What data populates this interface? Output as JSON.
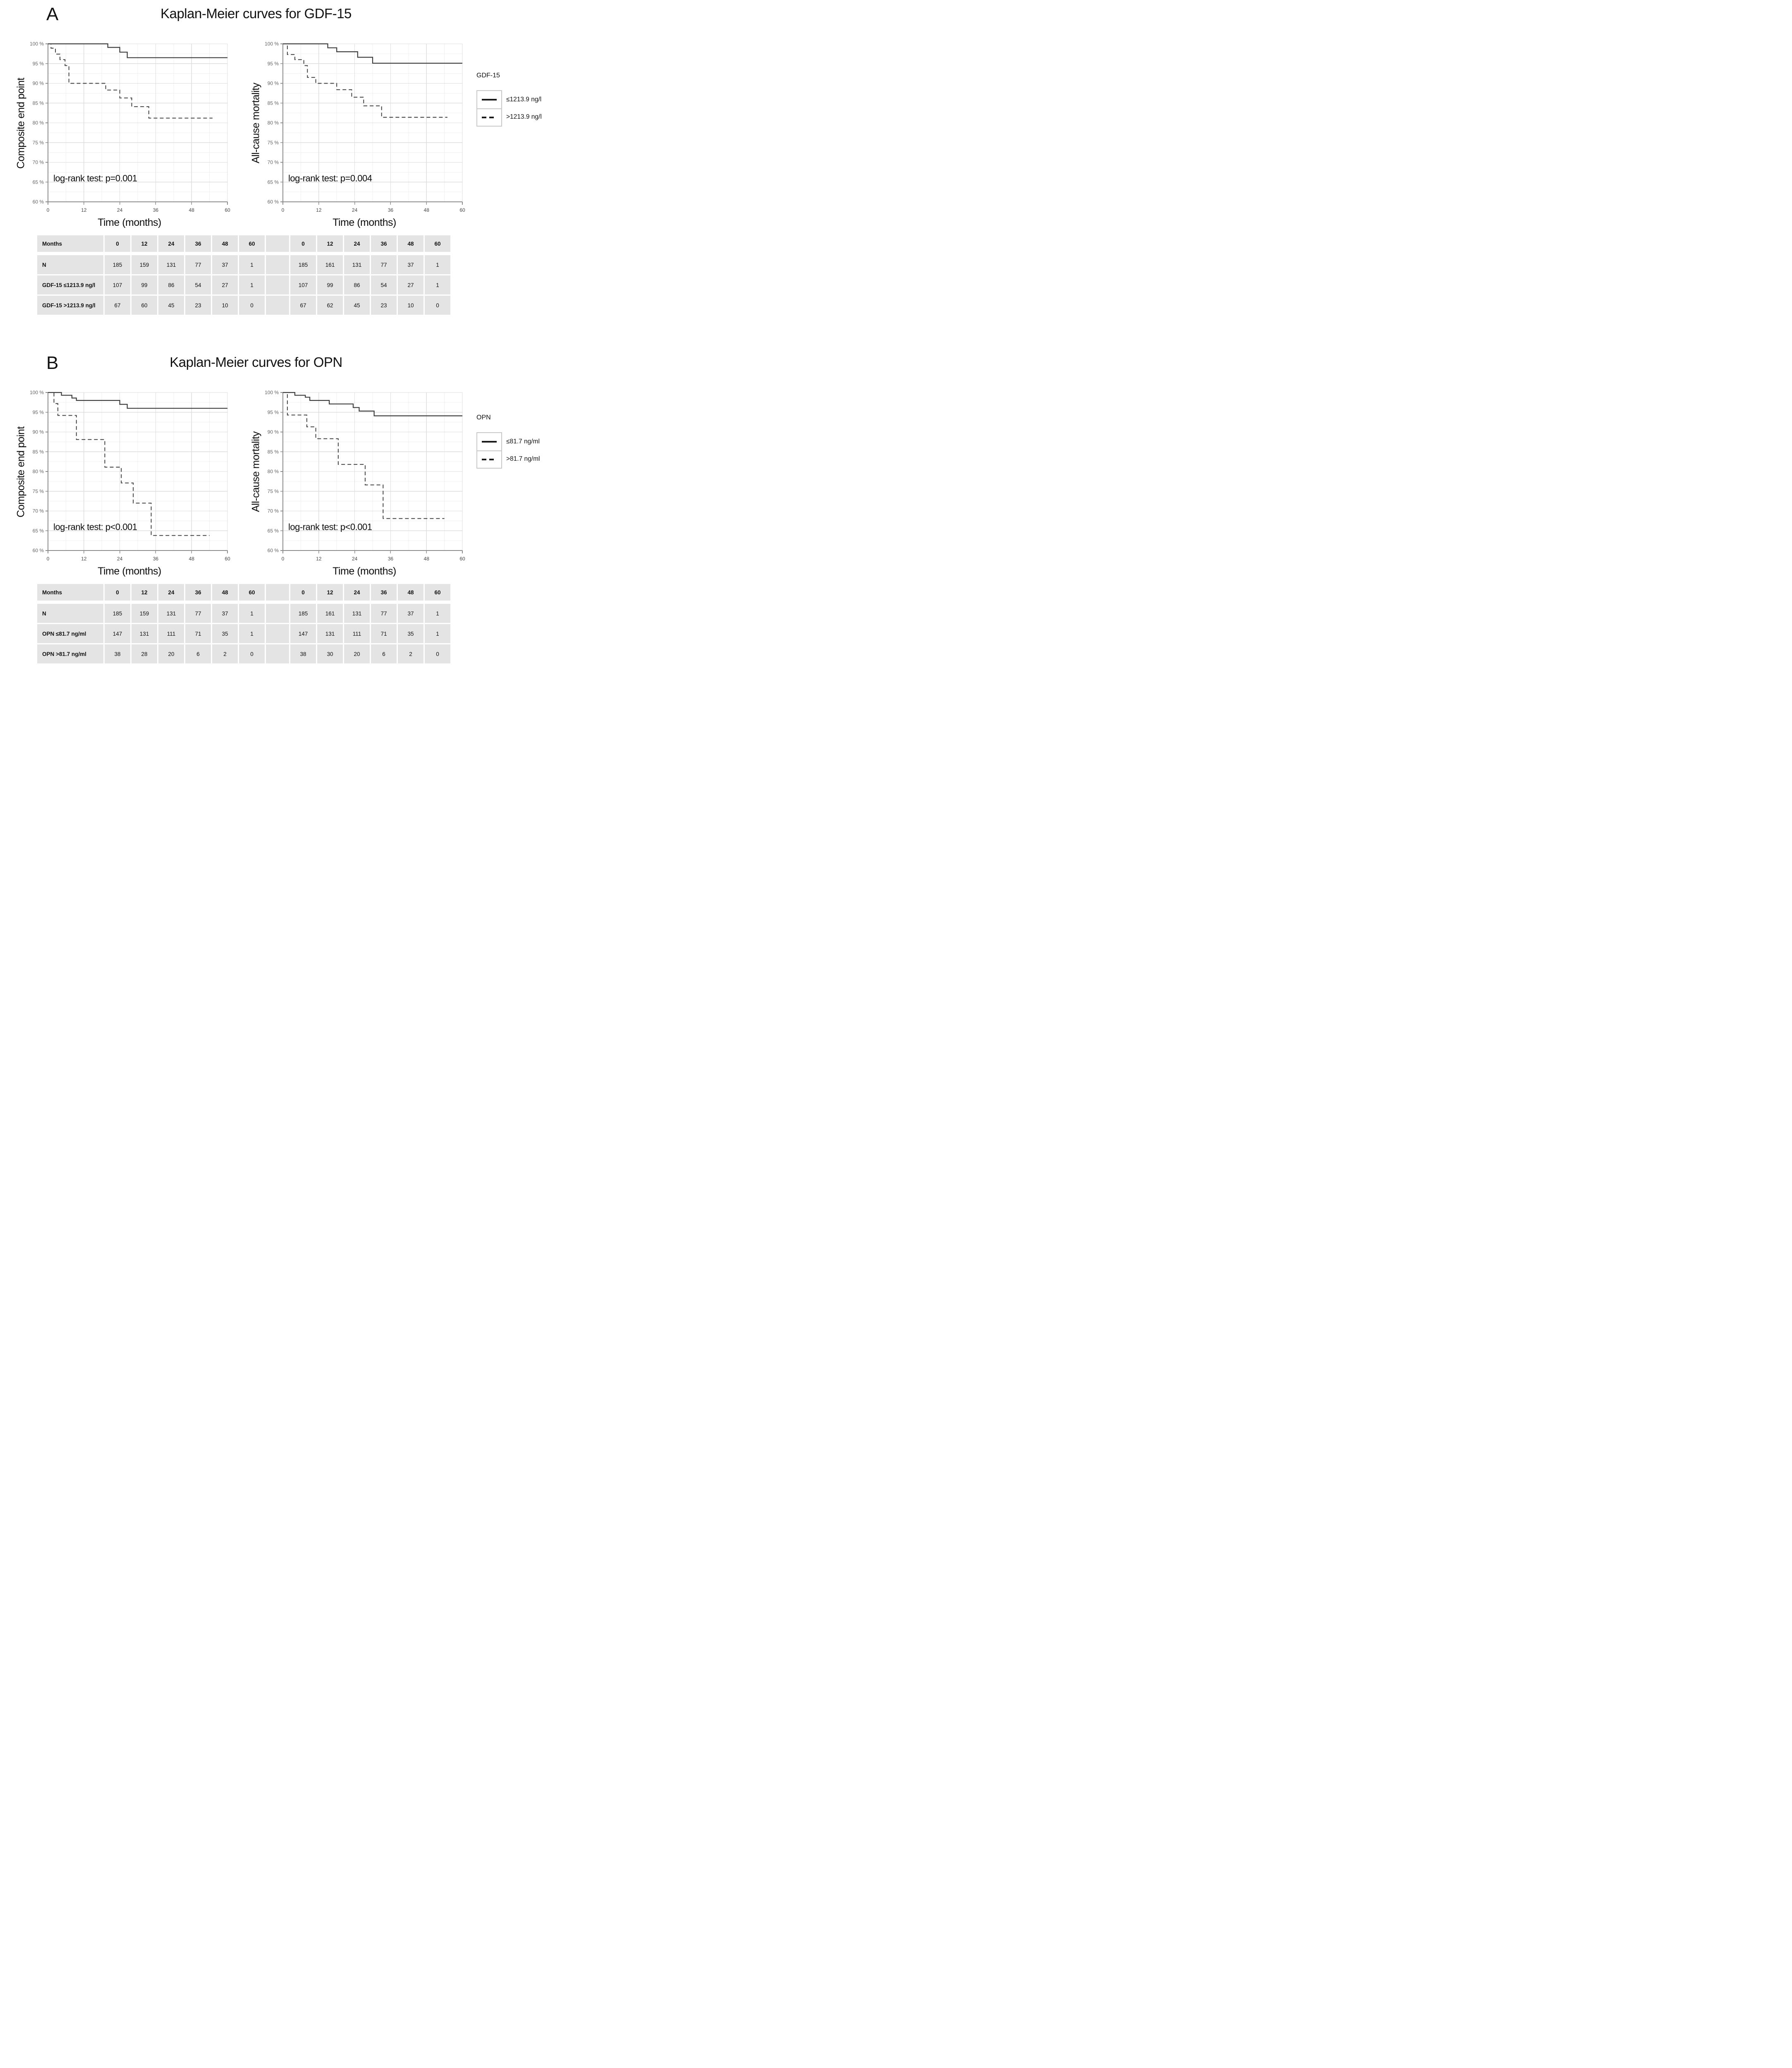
{
  "figure": {
    "panels": [
      {
        "label": "A",
        "title": "Kaplan-Meier curves for GDF-15"
      },
      {
        "label": "B",
        "title": "Kaplan-Meier curves for OPN"
      }
    ]
  },
  "colors": {
    "curve": "#3a3a3a",
    "grid_minor": "#efefef",
    "grid_major": "#dcdcdc",
    "axis": "#8c8c8c",
    "tick_text": "#666666",
    "xtick_text": "#444444",
    "annotation": "#0c0c0c",
    "table_cell_bg": "#e4e4e4",
    "legend_border": "#c8c8c8"
  },
  "chart_data": [
    {
      "id": "panelA-composite",
      "panel": "A",
      "type": "line",
      "subtype": "kaplan_meier_step",
      "ylabel": "Composite end point",
      "xlabel": "Time (months)",
      "xlim": [
        0,
        60
      ],
      "ylim": [
        60,
        100
      ],
      "xticks": [
        0,
        12,
        24,
        36,
        48,
        60
      ],
      "yticks": [
        60,
        65,
        70,
        75,
        80,
        85,
        90,
        95,
        100
      ],
      "ytick_format": "{v} %",
      "grid": {
        "minor_x": 6,
        "major_x": 12,
        "minor_y": 2.5,
        "major_y": 5
      },
      "annotation": {
        "text": "log-rank test: p=0.001",
        "x": 1.8,
        "y": 65.2
      },
      "series": [
        {
          "name": "GDF-15 ≤1213.9 ng/l",
          "style": "solid",
          "steps": [
            [
              0,
              100
            ],
            [
              20,
              99.1
            ],
            [
              24,
              97.9
            ],
            [
              26.5,
              96.5
            ]
          ],
          "end": 60
        },
        {
          "name": "GDF-15 >1213.9 ng/l",
          "style": "dashed",
          "steps": [
            [
              0,
              100
            ],
            [
              1,
              98.9
            ],
            [
              2.5,
              97.4
            ],
            [
              4,
              96
            ],
            [
              5.7,
              94.5
            ],
            [
              7,
              90
            ],
            [
              19.3,
              88.3
            ],
            [
              24,
              86.3
            ],
            [
              28,
              84.1
            ],
            [
              33.7,
              81.2
            ]
          ],
          "end": 55
        }
      ]
    },
    {
      "id": "panelA-mortality",
      "panel": "A",
      "type": "line",
      "subtype": "kaplan_meier_step",
      "ylabel": "All-cause mortality",
      "xlabel": "Time (months)",
      "xlim": [
        0,
        60
      ],
      "ylim": [
        60,
        100
      ],
      "xticks": [
        0,
        12,
        24,
        36,
        48,
        60
      ],
      "yticks": [
        60,
        65,
        70,
        75,
        80,
        85,
        90,
        95,
        100
      ],
      "ytick_format": "{v} %",
      "grid": {
        "minor_x": 6,
        "major_x": 12,
        "minor_y": 2.5,
        "major_y": 5
      },
      "annotation": {
        "text": "log-rank test: p=0.004",
        "x": 1.8,
        "y": 65.2
      },
      "series": [
        {
          "name": "GDF-15 ≤1213.9 ng/l",
          "style": "solid",
          "steps": [
            [
              0,
              100
            ],
            [
              15,
              99
            ],
            [
              18,
              98
            ],
            [
              25,
              96.6
            ],
            [
              30,
              95.1
            ]
          ],
          "end": 60
        },
        {
          "name": "GDF-15 >1213.9 ng/l",
          "style": "dashed",
          "steps": [
            [
              0,
              100
            ],
            [
              1.5,
              97.3
            ],
            [
              4,
              96
            ],
            [
              7,
              94.5
            ],
            [
              8.2,
              91.5
            ],
            [
              11,
              90
            ],
            [
              18,
              88.4
            ],
            [
              23,
              86.5
            ],
            [
              27,
              84.3
            ],
            [
              33,
              81.4
            ]
          ],
          "end": 55
        }
      ]
    },
    {
      "id": "panelB-composite",
      "panel": "B",
      "type": "line",
      "subtype": "kaplan_meier_step",
      "ylabel": "Composite end point",
      "xlabel": "Time (months)",
      "xlim": [
        0,
        60
      ],
      "ylim": [
        60,
        100
      ],
      "xticks": [
        0,
        12,
        24,
        36,
        48,
        60
      ],
      "yticks": [
        60,
        65,
        70,
        75,
        80,
        85,
        90,
        95,
        100
      ],
      "ytick_format": "{v} %",
      "grid": {
        "minor_x": 6,
        "major_x": 12,
        "minor_y": 2.5,
        "major_y": 5
      },
      "annotation": {
        "text": "log-rank test: p<0.001",
        "x": 1.8,
        "y": 65.2
      },
      "series": [
        {
          "name": "OPN ≤81.7 ng/ml",
          "style": "solid",
          "steps": [
            [
              0,
              100
            ],
            [
              4.5,
              99.3
            ],
            [
              8,
              98.6
            ],
            [
              9.5,
              98
            ],
            [
              24,
              97
            ],
            [
              26.5,
              96
            ]
          ],
          "end": 60
        },
        {
          "name": "OPN >81.7 ng/ml",
          "style": "dashed",
          "steps": [
            [
              0,
              100
            ],
            [
              2,
              97.2
            ],
            [
              3.3,
              94.2
            ],
            [
              9.5,
              88.1
            ],
            [
              19,
              81.1
            ],
            [
              24.5,
              77.1
            ],
            [
              28.5,
              72
            ],
            [
              34.5,
              63.8
            ]
          ],
          "end": 54
        }
      ]
    },
    {
      "id": "panelB-mortality",
      "panel": "B",
      "type": "line",
      "subtype": "kaplan_meier_step",
      "ylabel": "All-cause mortality",
      "xlabel": "Time (months)",
      "xlim": [
        0,
        60
      ],
      "ylim": [
        60,
        100
      ],
      "xticks": [
        0,
        12,
        24,
        36,
        48,
        60
      ],
      "yticks": [
        60,
        65,
        70,
        75,
        80,
        85,
        90,
        95,
        100
      ],
      "ytick_format": "{v} %",
      "grid": {
        "minor_x": 6,
        "major_x": 12,
        "minor_y": 2.5,
        "major_y": 5
      },
      "annotation": {
        "text": "log-rank test: p<0.001",
        "x": 1.8,
        "y": 65.2
      },
      "series": [
        {
          "name": "OPN ≤81.7 ng/ml",
          "style": "solid",
          "steps": [
            [
              0,
              100
            ],
            [
              4,
              99.3
            ],
            [
              7.5,
              98.8
            ],
            [
              9,
              98
            ],
            [
              15.5,
              97.1
            ],
            [
              23.5,
              96.2
            ],
            [
              25.5,
              95.3
            ],
            [
              30.5,
              94.1
            ]
          ],
          "end": 60
        },
        {
          "name": "OPN >81.7 ng/ml",
          "style": "dashed",
          "steps": [
            [
              0,
              100
            ],
            [
              1.5,
              94.3
            ],
            [
              8,
              91.3
            ],
            [
              11,
              88.3
            ],
            [
              18.5,
              81.8
            ],
            [
              27.5,
              76.6
            ],
            [
              33.5,
              68.1
            ]
          ],
          "end": 54
        }
      ]
    }
  ],
  "legends": [
    {
      "panel": "A",
      "title": "GDF-15",
      "entries": [
        {
          "style": "solid",
          "label": "≤1213.9 ng/l"
        },
        {
          "style": "dashed",
          "label": ">1213.9 ng/l"
        }
      ]
    },
    {
      "panel": "B",
      "title": "OPN",
      "entries": [
        {
          "style": "solid",
          "label": "≤81.7 ng/ml"
        },
        {
          "style": "dashed",
          "label": ">81.7 ng/ml"
        }
      ]
    }
  ],
  "tables": [
    {
      "panel": "A",
      "header_label": "Months",
      "columns": [
        "0",
        "12",
        "24",
        "36",
        "48",
        "60"
      ],
      "row_labels": [
        "N",
        "GDF-15 ≤1213.9 ng/l",
        "GDF-15 >1213.9 ng/l"
      ],
      "left_values": [
        [
          "185",
          "159",
          "131",
          "77",
          "37",
          "1"
        ],
        [
          "107",
          "99",
          "86",
          "54",
          "27",
          "1"
        ],
        [
          "67",
          "60",
          "45",
          "23",
          "10",
          "0"
        ]
      ],
      "right_values": [
        [
          "185",
          "161",
          "131",
          "77",
          "37",
          "1"
        ],
        [
          "107",
          "99",
          "86",
          "54",
          "27",
          "1"
        ],
        [
          "67",
          "62",
          "45",
          "23",
          "10",
          "0"
        ]
      ]
    },
    {
      "panel": "B",
      "header_label": "Months",
      "columns": [
        "0",
        "12",
        "24",
        "36",
        "48",
        "60"
      ],
      "row_labels": [
        "N",
        "OPN ≤81.7 ng/ml",
        "OPN >81.7 ng/ml"
      ],
      "left_values": [
        [
          "185",
          "159",
          "131",
          "77",
          "37",
          "1"
        ],
        [
          "147",
          "131",
          "111",
          "71",
          "35",
          "1"
        ],
        [
          "38",
          "28",
          "20",
          "6",
          "2",
          "0"
        ]
      ],
      "right_values": [
        [
          "185",
          "161",
          "131",
          "77",
          "37",
          "1"
        ],
        [
          "147",
          "131",
          "111",
          "71",
          "35",
          "1"
        ],
        [
          "38",
          "30",
          "20",
          "6",
          "2",
          "0"
        ]
      ]
    }
  ]
}
